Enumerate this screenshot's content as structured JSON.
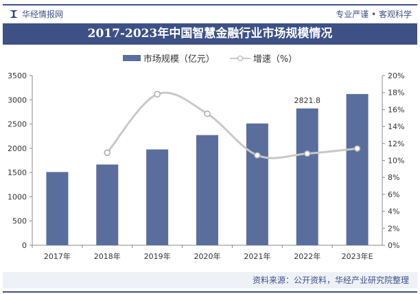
{
  "header": {
    "brand": "华经情报网",
    "slogan": "专业严谨 • 客观科学"
  },
  "chart_data": {
    "type": "bar+line",
    "title": "2017-2023年中国智慧金融行业市场规模情况",
    "categories": [
      "2017年",
      "2018年",
      "2019年",
      "2020年",
      "2021年",
      "2022年",
      "2023年E"
    ],
    "series": [
      {
        "name": "市场规模（亿元）",
        "type": "bar",
        "axis": "left",
        "color": "#5a6e9e",
        "values": [
          1510,
          1665,
          1976,
          2272,
          2512,
          2821.8,
          3119
        ]
      },
      {
        "name": "增速（%）",
        "type": "line",
        "axis": "right",
        "color": "#c8c8c8",
        "values": [
          null,
          10.9,
          17.8,
          15.5,
          10.6,
          10.8,
          11.4
        ]
      }
    ],
    "data_labels": [
      {
        "category": "2022年",
        "text": "2821.8"
      }
    ],
    "ylim_left": [
      0,
      3500
    ],
    "yticks_left": [
      "0",
      "500",
      "1000",
      "1500",
      "2000",
      "2500",
      "3000",
      "3500"
    ],
    "ylim_right": [
      0,
      20
    ],
    "yticks_right": [
      "0%",
      "2%",
      "4%",
      "6%",
      "8%",
      "10%",
      "12%",
      "14%",
      "16%",
      "18%",
      "20%"
    ],
    "legend": "top-center",
    "grid": false
  },
  "footer": {
    "source": "资料来源：公开资料，华经产业研究院整理"
  }
}
